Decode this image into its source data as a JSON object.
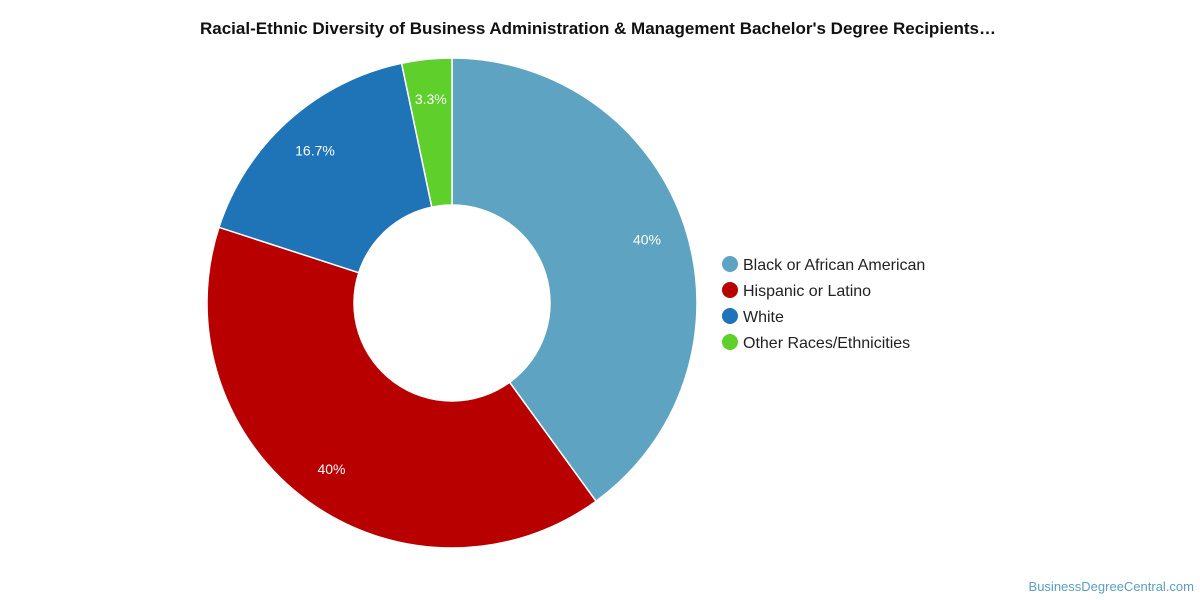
{
  "chart_data": {
    "type": "pie",
    "donut": true,
    "title": "Racial-Ethnic Diversity of Business Administration & Management Bachelor's Degree Recipients…",
    "categories": [
      "Black or African American",
      "Hispanic or Latino",
      "White",
      "Other Races/Ethnicities"
    ],
    "values": [
      40,
      40,
      16.7,
      3.3
    ],
    "data_labels": [
      "40%",
      "40%",
      "16.7%",
      "3.3%"
    ],
    "colors": [
      "#5ea3c1",
      "#b80000",
      "#1f73b7",
      "#5fcf2b"
    ],
    "legend": {
      "position": "right",
      "items": [
        "Black or African American",
        "Hispanic or Latino",
        "White",
        "Other Races/Ethnicities"
      ]
    }
  },
  "watermark": "BusinessDegreeCentral.com"
}
